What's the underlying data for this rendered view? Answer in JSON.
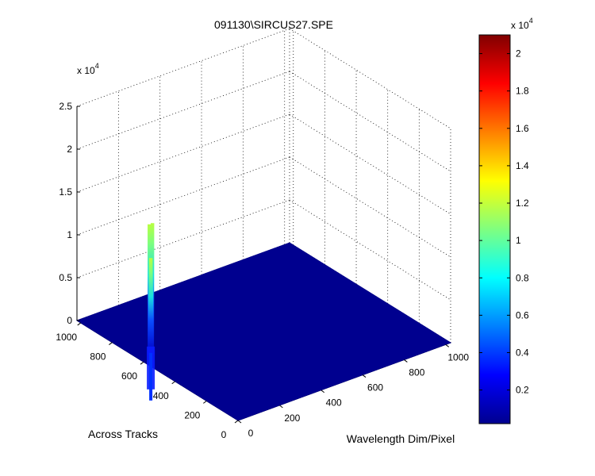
{
  "chart_data": {
    "type": "surface",
    "title": "091130\\SIRCUS27.SPE",
    "xlabel": "Wavelength Dim/Pixel",
    "ylabel": "Across Tracks",
    "zlabel": "",
    "z_exponent_label": "x 10",
    "z_exponent": "4",
    "xlim": [
      0,
      1024
    ],
    "ylim": [
      0,
      1024
    ],
    "zlim": [
      0,
      25000
    ],
    "x_ticks": [
      "0",
      "200",
      "400",
      "600",
      "800",
      "1000"
    ],
    "y_ticks": [
      "0",
      "200",
      "400",
      "600",
      "800",
      "1000"
    ],
    "z_ticks": [
      "0",
      "0.5",
      "1",
      "1.5",
      "2",
      "2.5"
    ],
    "grid": true,
    "colormap": "jet",
    "background_level": 0,
    "peaks": [
      {
        "x": 20,
        "y": 590,
        "z": 16000
      },
      {
        "x": 35,
        "y": 590,
        "z": 16000
      },
      {
        "x": 27,
        "y": 590,
        "z": 12000
      }
    ],
    "colorbar": {
      "exponent_label": "x 10",
      "exponent": "4",
      "range": [
        200,
        21000
      ],
      "ticks": [
        "0.2",
        "0.4",
        "0.6",
        "0.8",
        "1",
        "1.2",
        "1.4",
        "1.6",
        "1.8",
        "2"
      ]
    }
  }
}
